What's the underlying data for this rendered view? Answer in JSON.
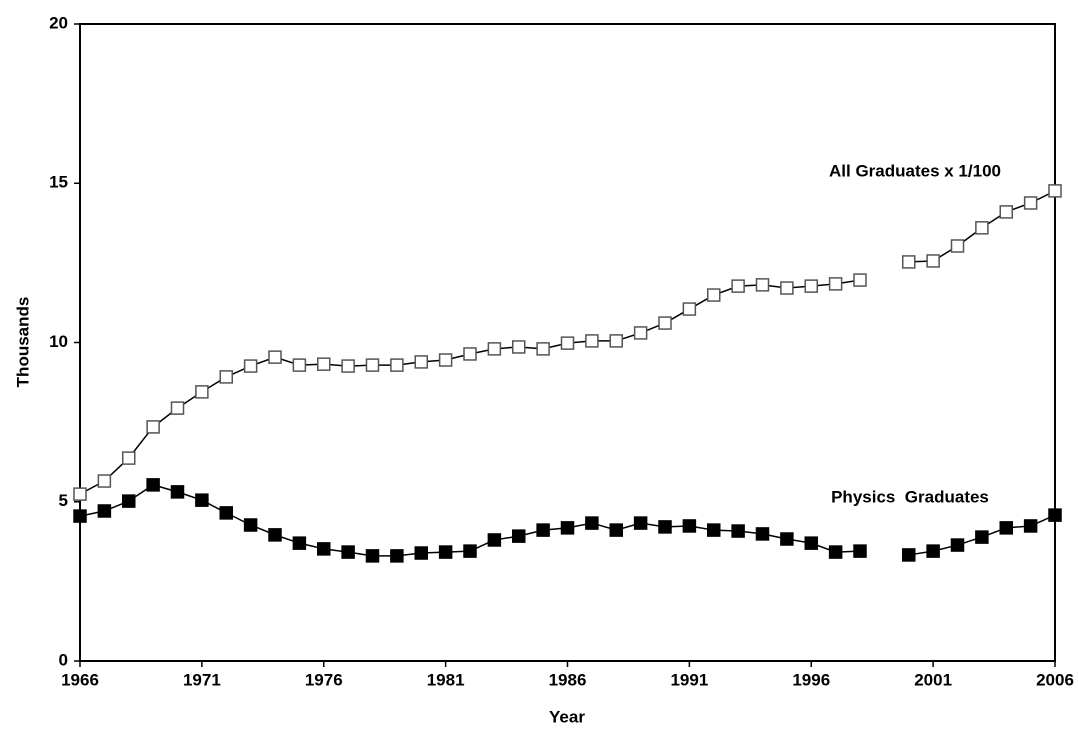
{
  "chart_data": {
    "type": "line",
    "x_label": "Year",
    "y_label": "Thousands",
    "x": [
      1966,
      1967,
      1968,
      1969,
      1970,
      1971,
      1972,
      1973,
      1974,
      1975,
      1976,
      1977,
      1978,
      1979,
      1980,
      1981,
      1982,
      1983,
      1984,
      1985,
      1986,
      1987,
      1988,
      1989,
      1990,
      1991,
      1992,
      1993,
      1994,
      1995,
      1996,
      1997,
      1998,
      1999,
      2000,
      2001,
      2002,
      2003,
      2004,
      2005,
      2006
    ],
    "series": [
      {
        "name": "All Graduates x 1/100",
        "color": "#000000",
        "marker_fill": "#ffffff",
        "marker_stroke": "#555555",
        "values": [
          5.24,
          5.65,
          6.37,
          7.35,
          7.94,
          8.45,
          8.92,
          9.26,
          9.54,
          9.29,
          9.32,
          9.26,
          9.29,
          9.29,
          9.39,
          9.45,
          9.64,
          9.8,
          9.86,
          9.8,
          9.98,
          10.05,
          10.05,
          10.3,
          10.61,
          11.05,
          11.49,
          11.77,
          11.81,
          11.71,
          11.77,
          11.84,
          11.96,
          null,
          12.53,
          12.56,
          13.03,
          13.6,
          14.1,
          14.38,
          14.76
        ]
      },
      {
        "name": "Physics  Graduates",
        "color": "#000000",
        "marker_fill": "#000000",
        "marker_stroke": "#000000",
        "values": [
          4.55,
          4.71,
          5.02,
          5.53,
          5.31,
          5.05,
          4.65,
          4.27,
          3.96,
          3.7,
          3.52,
          3.42,
          3.3,
          3.3,
          3.39,
          3.42,
          3.45,
          3.8,
          3.92,
          4.11,
          4.18,
          4.33,
          4.11,
          4.33,
          4.21,
          4.24,
          4.11,
          4.08,
          3.99,
          3.83,
          3.7,
          3.42,
          3.45,
          null,
          3.33,
          3.45,
          3.64,
          3.89,
          4.18,
          4.24,
          4.58
        ]
      }
    ],
    "xlim": [
      1966,
      2006
    ],
    "xticks": [
      1966,
      1971,
      1976,
      1981,
      1986,
      1991,
      1996,
      2001,
      2006
    ],
    "ylim": [
      0,
      20
    ],
    "yticks": [
      0,
      5,
      10,
      15,
      20
    ],
    "grid": false,
    "legend": "inline"
  }
}
